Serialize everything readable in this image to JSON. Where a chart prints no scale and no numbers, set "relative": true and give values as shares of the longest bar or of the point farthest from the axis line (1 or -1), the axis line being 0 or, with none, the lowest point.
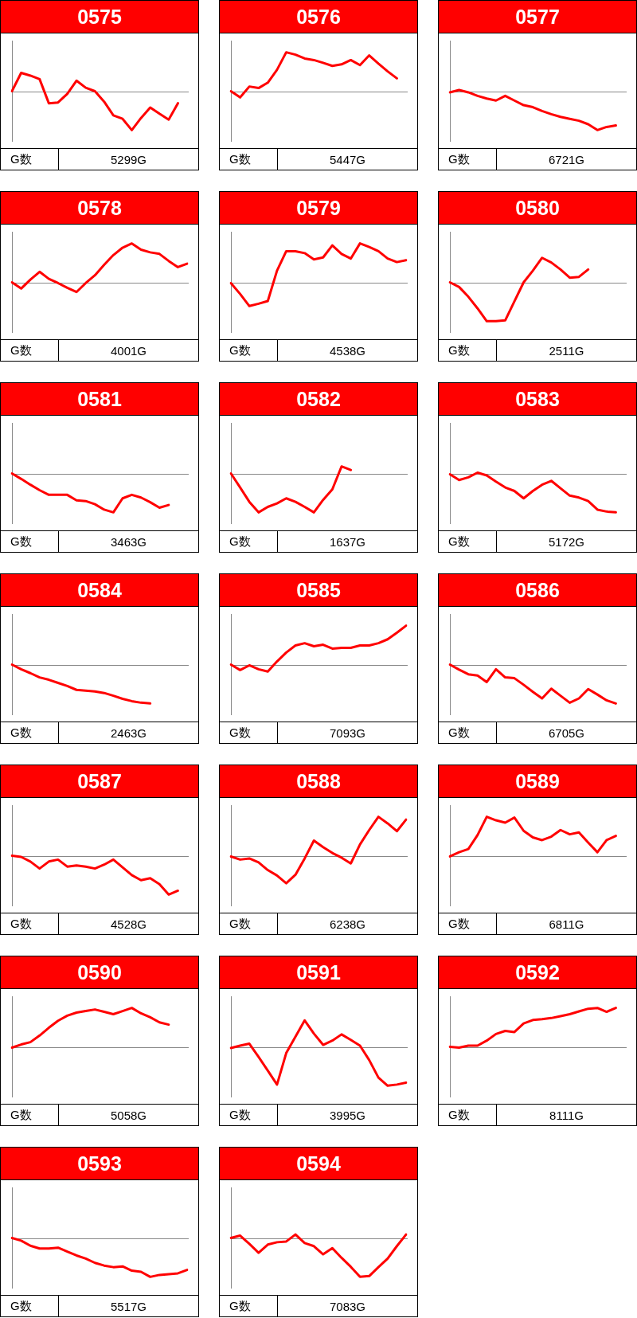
{
  "chart_data": [
    {
      "type": "line",
      "title": "0575",
      "relative": true,
      "marker": "none",
      "color": "#ff0000",
      "annotations": [
        "G数",
        "5299G"
      ],
      "categories": [
        null,
        null,
        null,
        null,
        null,
        null,
        null,
        null,
        null,
        null,
        null,
        null,
        null,
        null,
        null,
        null,
        null,
        null,
        null,
        null
      ],
      "values": [
        0,
        0.47,
        0.4,
        0.31,
        -0.31,
        -0.29,
        -0.07,
        0.27,
        0.09,
        0,
        -0.27,
        -0.62,
        -0.71,
        -1,
        -0.69,
        -0.42,
        -0.58,
        -0.73,
        -0.31,
        null
      ]
    },
    {
      "type": "line",
      "title": "0576",
      "relative": true,
      "marker": "none",
      "color": "#ff0000",
      "annotations": [
        "G数",
        "5447G"
      ],
      "categories": [
        null,
        null,
        null,
        null,
        null,
        null,
        null,
        null,
        null,
        null,
        null,
        null,
        null,
        null,
        null,
        null,
        null,
        null,
        null,
        null
      ],
      "values": [
        0,
        -0.16,
        0.12,
        0.08,
        0.22,
        0.55,
        1,
        0.94,
        0.84,
        0.8,
        0.73,
        0.65,
        0.69,
        0.8,
        0.67,
        0.92,
        0.71,
        0.51,
        0.33,
        null
      ]
    },
    {
      "type": "line",
      "title": "0577",
      "relative": true,
      "marker": "none",
      "color": "#ff0000",
      "annotations": [
        "G数",
        "6721G"
      ],
      "categories": [
        null,
        null,
        null,
        null,
        null,
        null,
        null,
        null,
        null,
        null,
        null,
        null,
        null,
        null,
        null,
        null,
        null,
        null,
        null,
        null
      ],
      "values": [
        -0.03,
        0.03,
        -0.03,
        -0.12,
        -0.19,
        -0.24,
        -0.12,
        -0.24,
        -0.36,
        -0.41,
        -0.51,
        -0.59,
        -0.66,
        -0.71,
        -0.76,
        -0.85,
        -1,
        -0.92,
        -0.88,
        null
      ]
    },
    {
      "type": "line",
      "title": "0578",
      "relative": true,
      "marker": "none",
      "color": "#ff0000",
      "annotations": [
        "G数",
        "4001G"
      ],
      "categories": [
        null,
        null,
        null,
        null,
        null,
        null,
        null,
        null,
        null,
        null,
        null,
        null,
        null,
        null,
        null,
        null,
        null,
        null,
        null,
        null
      ],
      "values": [
        0,
        -0.16,
        0.07,
        0.27,
        0.09,
        -0.02,
        -0.14,
        -0.25,
        -0.02,
        0.18,
        0.45,
        0.7,
        0.89,
        1,
        0.84,
        0.77,
        0.73,
        0.55,
        0.39,
        0.48
      ]
    },
    {
      "type": "line",
      "title": "0579",
      "relative": true,
      "marker": "none",
      "color": "#ff0000",
      "annotations": [
        "G数",
        "4538G"
      ],
      "categories": [
        null,
        null,
        null,
        null,
        null,
        null,
        null,
        null,
        null,
        null,
        null,
        null,
        null,
        null,
        null,
        null,
        null,
        null,
        null,
        null
      ],
      "values": [
        -0.02,
        -0.3,
        -0.61,
        -0.55,
        -0.48,
        0.3,
        0.8,
        0.8,
        0.75,
        0.59,
        0.64,
        0.95,
        0.73,
        0.61,
        1,
        0.91,
        0.8,
        0.61,
        0.52,
        0.57
      ]
    },
    {
      "type": "line",
      "title": "0580",
      "relative": true,
      "marker": "none",
      "color": "#ff0000",
      "annotations": [
        "G数",
        "2511G"
      ],
      "categories": [
        null,
        null,
        null,
        null,
        null,
        null,
        null,
        null,
        null,
        null,
        null,
        null,
        null,
        null,
        null,
        null,
        null,
        null,
        null,
        null
      ],
      "values": [
        0,
        -0.12,
        -0.37,
        -0.67,
        -1,
        -1,
        -0.98,
        -0.49,
        0,
        0.3,
        0.63,
        0.51,
        0.33,
        0.12,
        0.14,
        0.33,
        null,
        null,
        null,
        null
      ]
    },
    {
      "type": "line",
      "title": "0581",
      "relative": true,
      "marker": "none",
      "color": "#ff0000",
      "annotations": [
        "G数",
        "3463G"
      ],
      "categories": [
        null,
        null,
        null,
        null,
        null,
        null,
        null,
        null,
        null,
        null,
        null,
        null,
        null,
        null,
        null,
        null,
        null,
        null,
        null,
        null
      ],
      "values": [
        0,
        -0.14,
        -0.29,
        -0.43,
        -0.55,
        -0.55,
        -0.55,
        -0.69,
        -0.71,
        -0.79,
        -0.93,
        -1,
        -0.64,
        -0.55,
        -0.62,
        -0.74,
        -0.88,
        -0.81,
        null,
        null
      ]
    },
    {
      "type": "line",
      "title": "0582",
      "relative": true,
      "marker": "none",
      "color": "#ff0000",
      "annotations": [
        "G数",
        "1637G"
      ],
      "categories": [
        null,
        null,
        null,
        null,
        null,
        null,
        null,
        null,
        null,
        null,
        null,
        null,
        null,
        null,
        null,
        null,
        null,
        null,
        null,
        null
      ],
      "values": [
        0,
        -0.36,
        -0.73,
        -1,
        -0.86,
        -0.77,
        -0.64,
        -0.73,
        -0.86,
        -1,
        -0.68,
        -0.41,
        0.18,
        0.09,
        null,
        null,
        null,
        null,
        null,
        null
      ]
    },
    {
      "type": "line",
      "title": "0583",
      "relative": true,
      "marker": "none",
      "color": "#ff0000",
      "annotations": [
        "G数",
        "5172G"
      ],
      "categories": [
        null,
        null,
        null,
        null,
        null,
        null,
        null,
        null,
        null,
        null,
        null,
        null,
        null,
        null,
        null,
        null,
        null,
        null,
        null,
        null
      ],
      "values": [
        -0.02,
        -0.17,
        -0.1,
        0.02,
        -0.05,
        -0.21,
        -0.36,
        -0.45,
        -0.64,
        -0.45,
        -0.29,
        -0.19,
        -0.38,
        -0.57,
        -0.62,
        -0.71,
        -0.93,
        -0.98,
        -1,
        null
      ]
    },
    {
      "type": "line",
      "title": "0584",
      "relative": true,
      "marker": "none",
      "color": "#ff0000",
      "annotations": [
        "G数",
        "2463G"
      ],
      "categories": [
        null,
        null,
        null,
        null,
        null,
        null,
        null,
        null,
        null,
        null,
        null,
        null,
        null,
        null,
        null,
        null,
        null,
        null,
        null,
        null
      ],
      "values": [
        0,
        -0.12,
        -0.22,
        -0.33,
        -0.39,
        -0.47,
        -0.55,
        -0.65,
        -0.67,
        -0.69,
        -0.73,
        -0.8,
        -0.88,
        -0.94,
        -0.98,
        -1,
        null,
        null,
        null,
        null
      ]
    },
    {
      "type": "line",
      "title": "0585",
      "relative": true,
      "marker": "none",
      "color": "#ff0000",
      "annotations": [
        "G数",
        "7093G"
      ],
      "categories": [
        null,
        null,
        null,
        null,
        null,
        null,
        null,
        null,
        null,
        null,
        null,
        null,
        null,
        null,
        null,
        null,
        null,
        null,
        null,
        null
      ],
      "values": [
        0,
        -0.14,
        -0.02,
        -0.12,
        -0.18,
        0.08,
        0.31,
        0.49,
        0.55,
        0.47,
        0.51,
        0.41,
        0.43,
        0.43,
        0.49,
        0.49,
        0.55,
        0.65,
        0.82,
        1
      ]
    },
    {
      "type": "line",
      "title": "0586",
      "relative": true,
      "marker": "none",
      "color": "#ff0000",
      "annotations": [
        "G数",
        "6705G"
      ],
      "categories": [
        null,
        null,
        null,
        null,
        null,
        null,
        null,
        null,
        null,
        null,
        null,
        null,
        null,
        null,
        null,
        null,
        null,
        null,
        null,
        null
      ],
      "values": [
        0,
        -0.13,
        -0.25,
        -0.28,
        -0.45,
        -0.12,
        -0.33,
        -0.35,
        -0.52,
        -0.7,
        -0.87,
        -0.62,
        -0.8,
        -0.98,
        -0.87,
        -0.63,
        -0.77,
        -0.92,
        -1,
        null
      ]
    },
    {
      "type": "line",
      "title": "0587",
      "relative": true,
      "marker": "none",
      "color": "#ff0000",
      "annotations": [
        "G数",
        "4528G"
      ],
      "categories": [
        null,
        null,
        null,
        null,
        null,
        null,
        null,
        null,
        null,
        null,
        null,
        null,
        null,
        null,
        null,
        null,
        null,
        null,
        null,
        null
      ],
      "values": [
        0,
        -0.03,
        -0.15,
        -0.33,
        -0.15,
        -0.1,
        -0.28,
        -0.25,
        -0.28,
        -0.33,
        -0.23,
        -0.1,
        -0.3,
        -0.5,
        -0.63,
        -0.58,
        -0.73,
        -1,
        -0.9,
        null
      ]
    },
    {
      "type": "line",
      "title": "0588",
      "relative": true,
      "marker": "none",
      "color": "#ff0000",
      "annotations": [
        "G数",
        "6238G"
      ],
      "categories": [
        null,
        null,
        null,
        null,
        null,
        null,
        null,
        null,
        null,
        null,
        null,
        null,
        null,
        null,
        null,
        null,
        null,
        null,
        null,
        null
      ],
      "values": [
        -0.02,
        -0.1,
        -0.07,
        -0.17,
        -0.37,
        -0.51,
        -0.71,
        -0.49,
        -0.07,
        0.39,
        0.22,
        0.07,
        -0.05,
        -0.2,
        0.29,
        0.66,
        1,
        0.83,
        0.63,
        0.93
      ]
    },
    {
      "type": "line",
      "title": "0589",
      "relative": true,
      "marker": "none",
      "color": "#ff0000",
      "annotations": [
        "G数",
        "6811G"
      ],
      "categories": [
        null,
        null,
        null,
        null,
        null,
        null,
        null,
        null,
        null,
        null,
        null,
        null,
        null,
        null,
        null,
        null,
        null,
        null,
        null,
        null
      ],
      "values": [
        -0.02,
        0.09,
        0.17,
        0.53,
        1,
        0.91,
        0.85,
        0.98,
        0.64,
        0.47,
        0.4,
        0.49,
        0.66,
        0.55,
        0.6,
        0.34,
        0.09,
        0.4,
        0.51,
        null
      ]
    },
    {
      "type": "line",
      "title": "0590",
      "relative": true,
      "marker": "none",
      "color": "#ff0000",
      "annotations": [
        "G数",
        "5058G"
      ],
      "categories": [
        null,
        null,
        null,
        null,
        null,
        null,
        null,
        null,
        null,
        null,
        null,
        null,
        null,
        null,
        null,
        null,
        null,
        null,
        null,
        null
      ],
      "values": [
        -0.02,
        0.06,
        0.12,
        0.29,
        0.49,
        0.67,
        0.8,
        0.88,
        0.92,
        0.96,
        0.9,
        0.84,
        0.92,
        1,
        0.86,
        0.76,
        0.63,
        0.57,
        null,
        null
      ]
    },
    {
      "type": "line",
      "title": "0591",
      "relative": true,
      "marker": "none",
      "color": "#ff0000",
      "annotations": [
        "G数",
        "3995G"
      ],
      "categories": [
        null,
        null,
        null,
        null,
        null,
        null,
        null,
        null,
        null,
        null,
        null,
        null,
        null,
        null,
        null,
        null,
        null,
        null,
        null,
        null
      ],
      "values": [
        -0.03,
        0.03,
        0.08,
        -0.26,
        -0.61,
        -0.97,
        -0.16,
        0.26,
        0.68,
        0.34,
        0.05,
        0.16,
        0.32,
        0.18,
        0.03,
        -0.34,
        -0.79,
        -1,
        -0.97,
        -0.92
      ]
    },
    {
      "type": "line",
      "title": "0592",
      "relative": true,
      "marker": "none",
      "color": "#ff0000",
      "annotations": [
        "G数",
        "8111G"
      ],
      "categories": [
        null,
        null,
        null,
        null,
        null,
        null,
        null,
        null,
        null,
        null,
        null,
        null,
        null,
        null,
        null,
        null,
        null,
        null,
        null,
        null
      ],
      "values": [
        0,
        -0.02,
        0.03,
        0.03,
        0.16,
        0.33,
        0.41,
        0.38,
        0.6,
        0.69,
        0.71,
        0.74,
        0.79,
        0.84,
        0.91,
        0.98,
        1,
        0.9,
        1,
        null
      ]
    },
    {
      "type": "line",
      "title": "0593",
      "relative": true,
      "marker": "none",
      "color": "#ff0000",
      "annotations": [
        "G数",
        "5517G"
      ],
      "categories": [
        null,
        null,
        null,
        null,
        null,
        null,
        null,
        null,
        null,
        null,
        null,
        null,
        null,
        null,
        null,
        null,
        null,
        null,
        null,
        null
      ],
      "values": [
        0,
        -0.07,
        -0.2,
        -0.27,
        -0.27,
        -0.25,
        -0.35,
        -0.45,
        -0.53,
        -0.64,
        -0.71,
        -0.75,
        -0.73,
        -0.84,
        -0.87,
        -1,
        -0.95,
        -0.93,
        -0.91,
        -0.82
      ]
    },
    {
      "type": "line",
      "title": "0594",
      "relative": true,
      "marker": "none",
      "color": "#ff0000",
      "annotations": [
        "G数",
        "7083G"
      ],
      "categories": [
        null,
        null,
        null,
        null,
        null,
        null,
        null,
        null,
        null,
        null,
        null,
        null,
        null,
        null,
        null,
        null,
        null,
        null,
        null,
        null
      ],
      "values": [
        0,
        0.06,
        -0.15,
        -0.38,
        -0.17,
        -0.11,
        -0.09,
        0.09,
        -0.13,
        -0.21,
        -0.42,
        -0.26,
        -0.51,
        -0.74,
        -1,
        -0.98,
        -0.75,
        -0.53,
        -0.21,
        0.09
      ]
    }
  ]
}
